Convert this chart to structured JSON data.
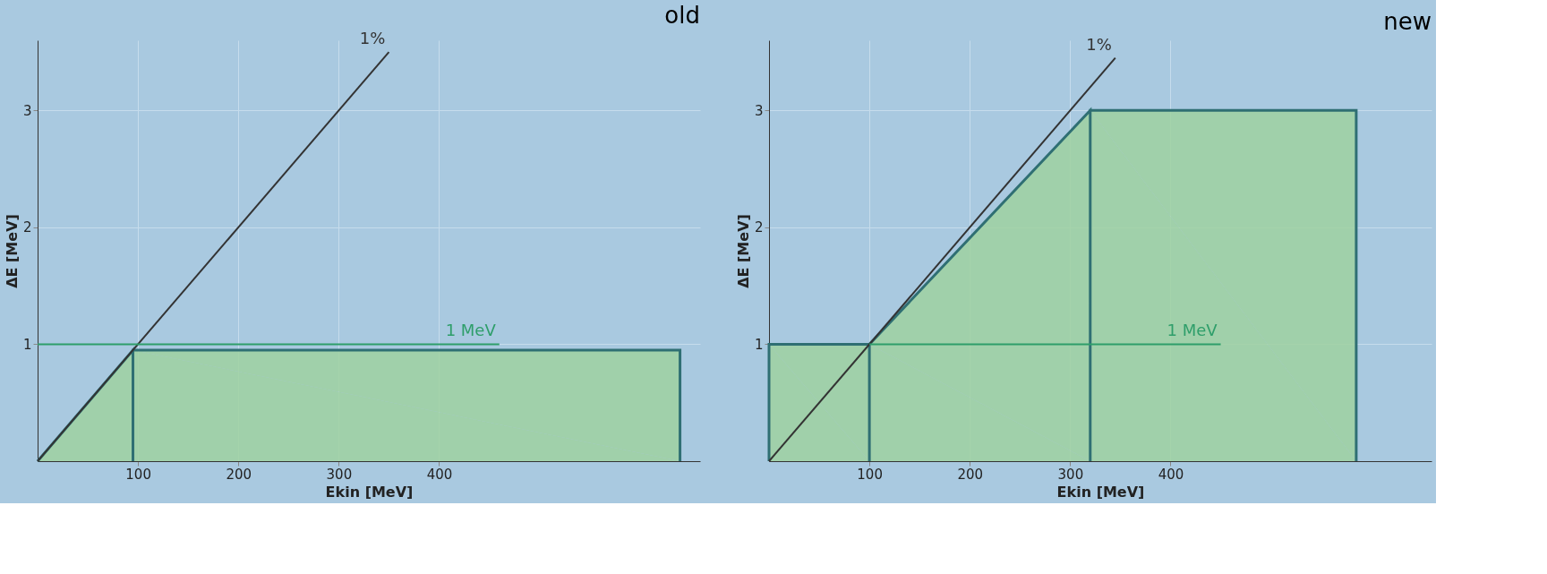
{
  "chart_data": [
    {
      "type": "area",
      "title": "old",
      "xlabel": "Ekin [MeV]",
      "ylabel": "ΔE [MeV]",
      "xlim": [
        0,
        660
      ],
      "ylim": [
        0,
        3.6
      ],
      "xticks": [
        100,
        200,
        300,
        400
      ],
      "yticks": [
        1,
        2,
        3
      ],
      "grid": true,
      "series": [
        {
          "color": "#9fd1a0",
          "x": [
            0,
            95,
            640,
            640
          ],
          "values": [
            0,
            0.95,
            0.95,
            0
          ]
        },
        {
          "type": "line",
          "name": "1%",
          "color": "#333333",
          "x": [
            0,
            350
          ],
          "values": [
            0,
            3.5
          ]
        },
        {
          "type": "line",
          "name": "1 MeV",
          "color": "#2e9e6a",
          "x": [
            0,
            460
          ],
          "values": [
            1,
            1
          ]
        }
      ]
    },
    {
      "type": "area",
      "title": "new",
      "xlabel": "Ekin [MeV]",
      "ylabel": "ΔE [MeV]",
      "xlim": [
        0,
        660
      ],
      "ylim": [
        0,
        3.6
      ],
      "xticks": [
        100,
        200,
        300,
        400
      ],
      "yticks": [
        1,
        2,
        3
      ],
      "grid": true,
      "series": [
        {
          "color": "#9fd1a0",
          "x": [
            0,
            0,
            100,
            320,
            585,
            585
          ],
          "values": [
            0,
            1,
            1,
            3,
            3,
            0
          ]
        },
        {
          "type": "line",
          "name": "1%",
          "color": "#333333",
          "x": [
            0,
            345
          ],
          "values": [
            0,
            3.45
          ]
        },
        {
          "type": "line",
          "name": "1 MeV",
          "color": "#2e9e6a",
          "x": [
            100,
            450
          ],
          "values": [
            1,
            1
          ]
        }
      ]
    }
  ]
}
